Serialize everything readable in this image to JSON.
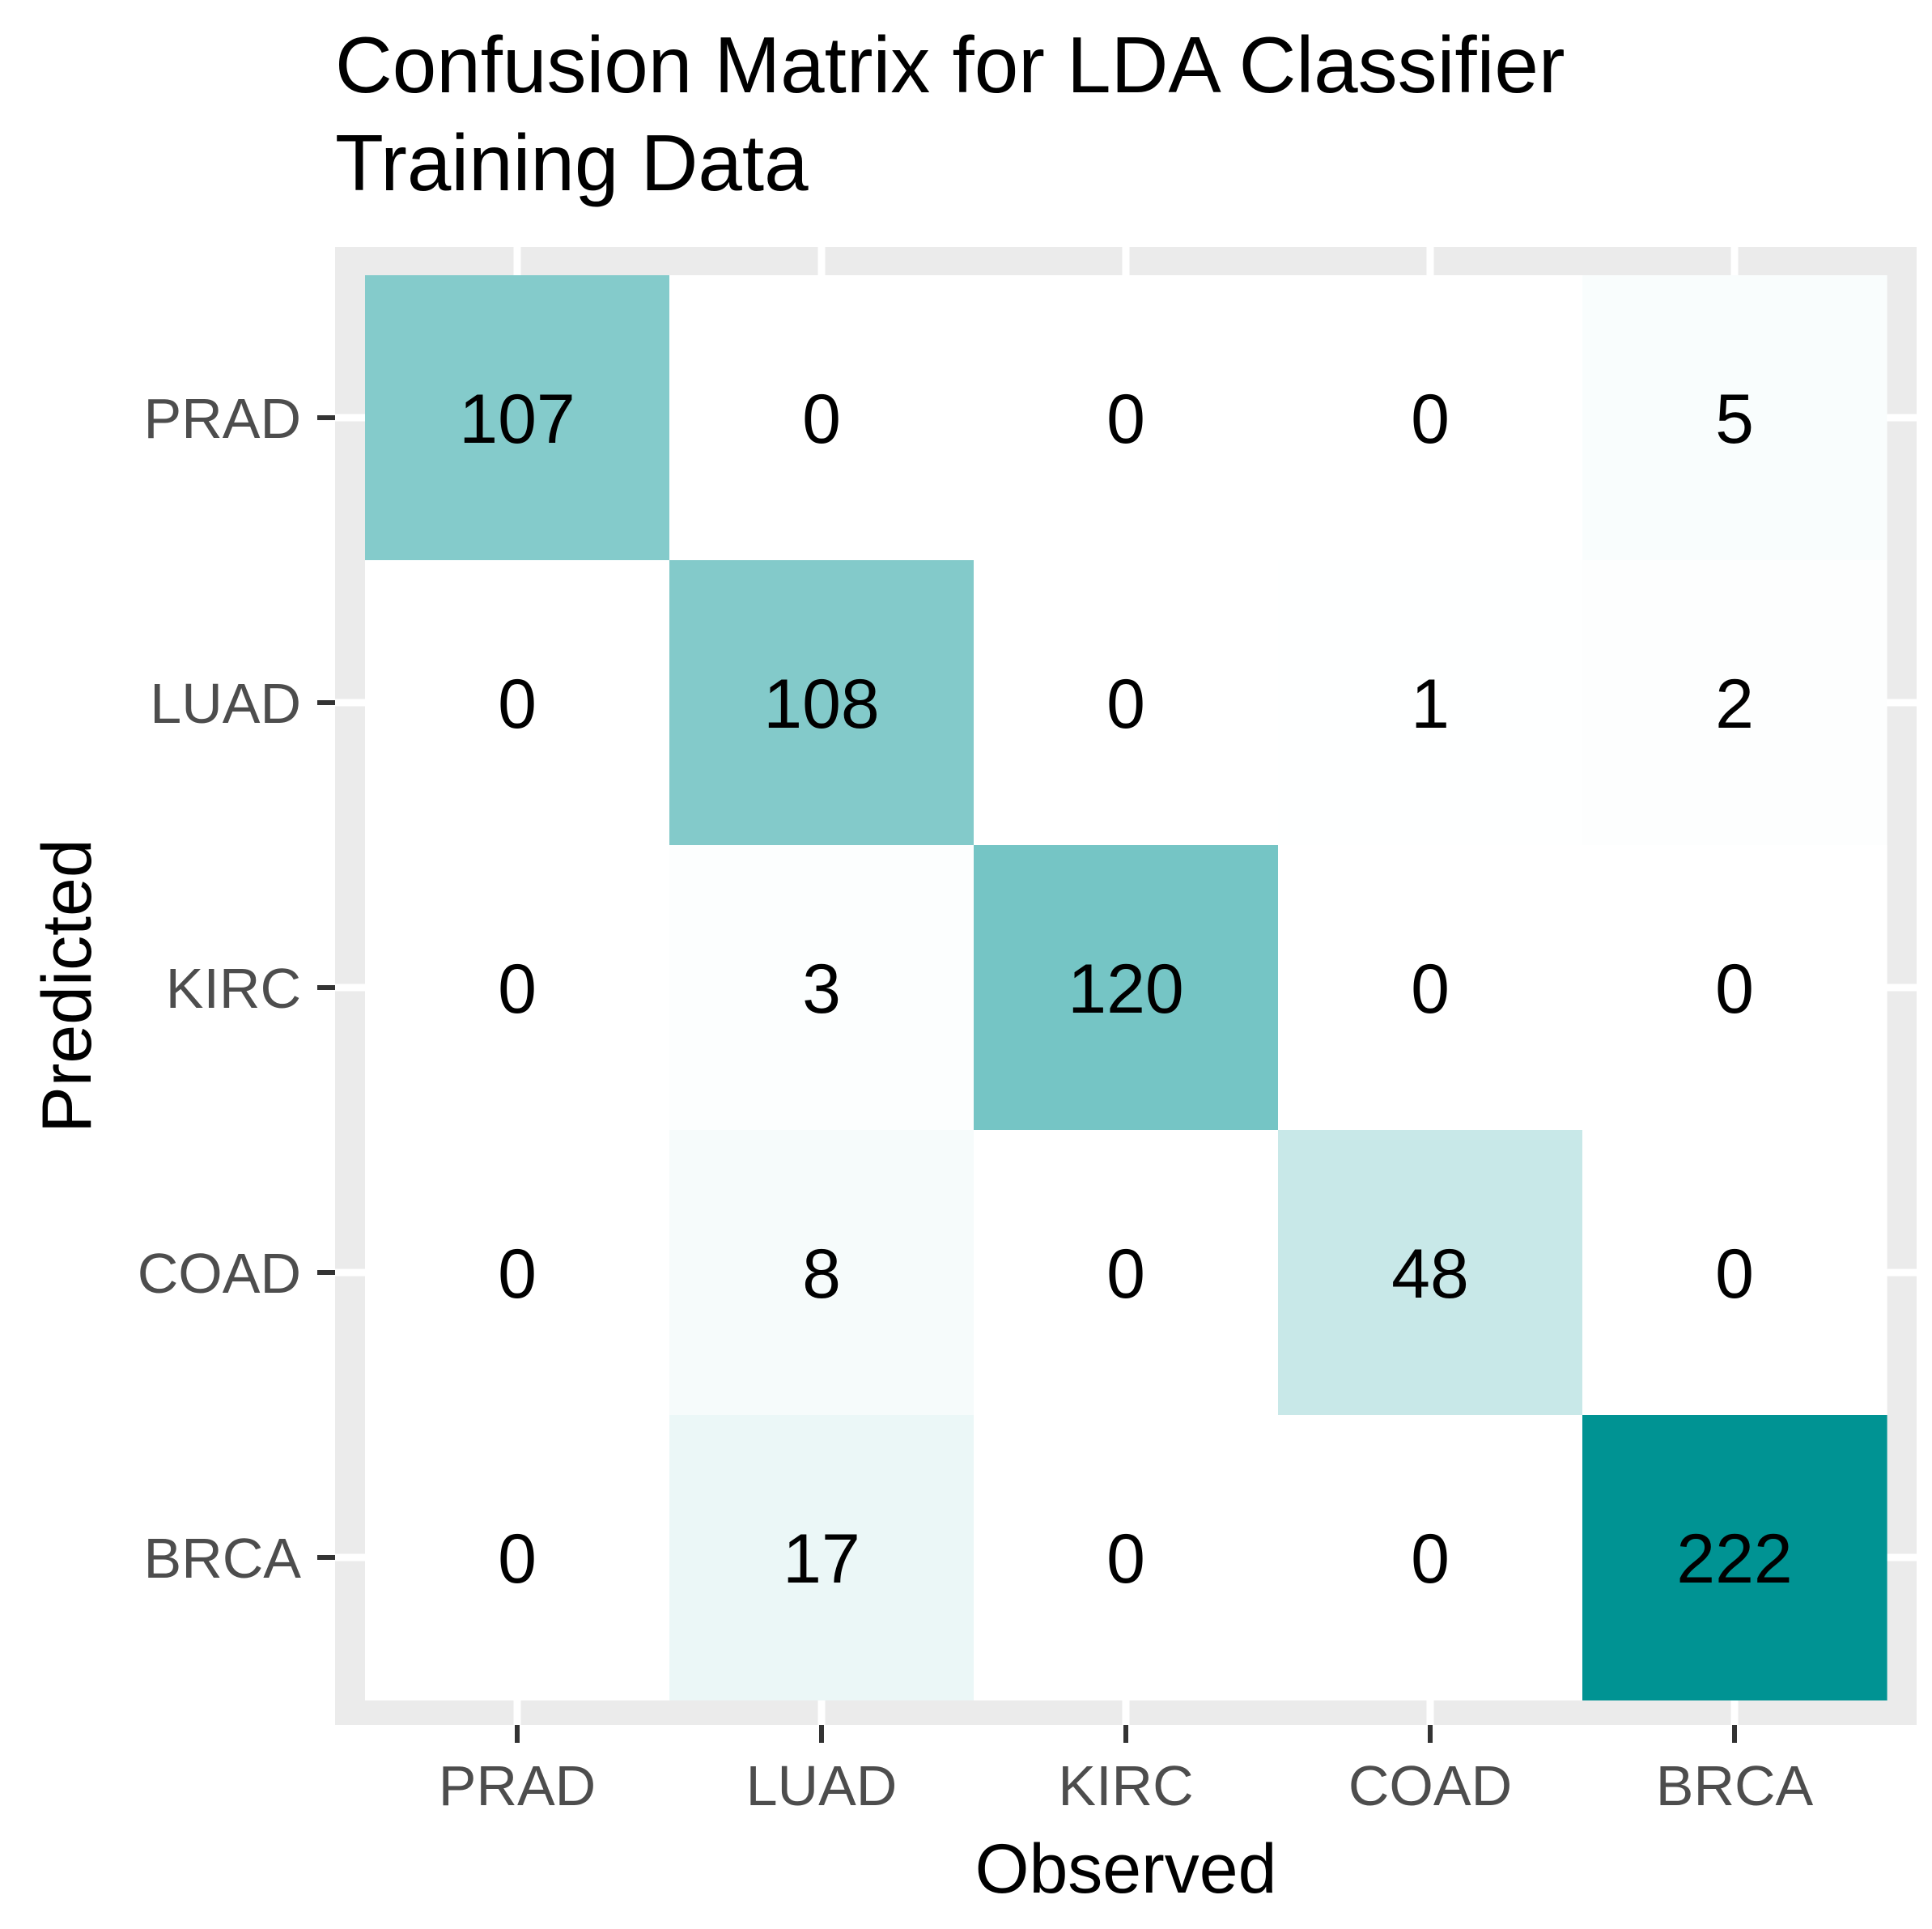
{
  "chart_data": {
    "type": "heatmap",
    "title_lines": [
      "Confusion Matrix for LDA Classifier",
      "Training Data"
    ],
    "xlabel": "Observed",
    "ylabel": "Predicted",
    "x_categories": [
      "PRAD",
      "LUAD",
      "KIRC",
      "COAD",
      "BRCA"
    ],
    "y_categories": [
      "PRAD",
      "LUAD",
      "KIRC",
      "COAD",
      "BRCA"
    ],
    "matrix": [
      [
        107,
        0,
        0,
        0,
        5
      ],
      [
        0,
        108,
        0,
        1,
        2
      ],
      [
        0,
        3,
        120,
        0,
        0
      ],
      [
        0,
        8,
        0,
        48,
        0
      ],
      [
        0,
        17,
        0,
        0,
        222
      ]
    ],
    "color_low": "#ffffff",
    "color_high": "#009393",
    "panel_background": "#ebebeb",
    "grid": true,
    "legend": "none"
  }
}
